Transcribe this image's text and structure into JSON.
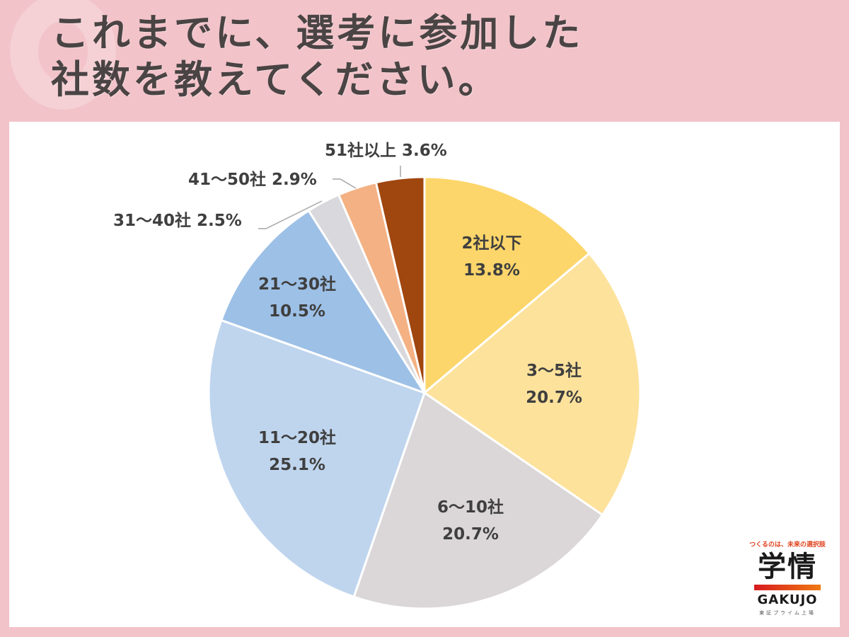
{
  "header": {
    "title_line1": "これまでに、選考に参加した",
    "title_line2": "社数を教えてください。"
  },
  "chart_data": {
    "type": "pie",
    "title": "これまでに、選考に参加した社数を教えてください。",
    "start_angle": "12 o'clock",
    "direction": "clockwise",
    "categories": [
      "2社以下",
      "3〜5社",
      "6〜10社",
      "11〜20社",
      "21〜30社",
      "31〜40社",
      "41〜50社",
      "51社以上"
    ],
    "values": [
      13.8,
      20.7,
      20.7,
      25.1,
      10.5,
      2.5,
      2.9,
      3.6
    ],
    "unit": "%",
    "colors": [
      "#fcd66a",
      "#fde29c",
      "#dbd7d8",
      "#bfd5ee",
      "#9dc0e6",
      "#d9d8dc",
      "#f4b183",
      "#a0460f"
    ],
    "labels": [
      {
        "name": "2社以下",
        "value": "13.8%"
      },
      {
        "name": "3〜5社",
        "value": "20.7%"
      },
      {
        "name": "6〜10社",
        "value": "20.7%"
      },
      {
        "name": "11〜20社",
        "value": "25.1%"
      },
      {
        "name": "21〜30社",
        "value": "10.5%"
      },
      {
        "text": "31〜40社 2.5%"
      },
      {
        "text": "41〜50社 2.9%"
      },
      {
        "text": "51社以上 3.6%"
      }
    ],
    "legend": "none (data labels on slices)"
  },
  "logo": {
    "tagline": "つくるのは、未来の選択肢",
    "kanji": "学情",
    "roman": "GAKUJO",
    "sub": "東証プライム上場"
  }
}
